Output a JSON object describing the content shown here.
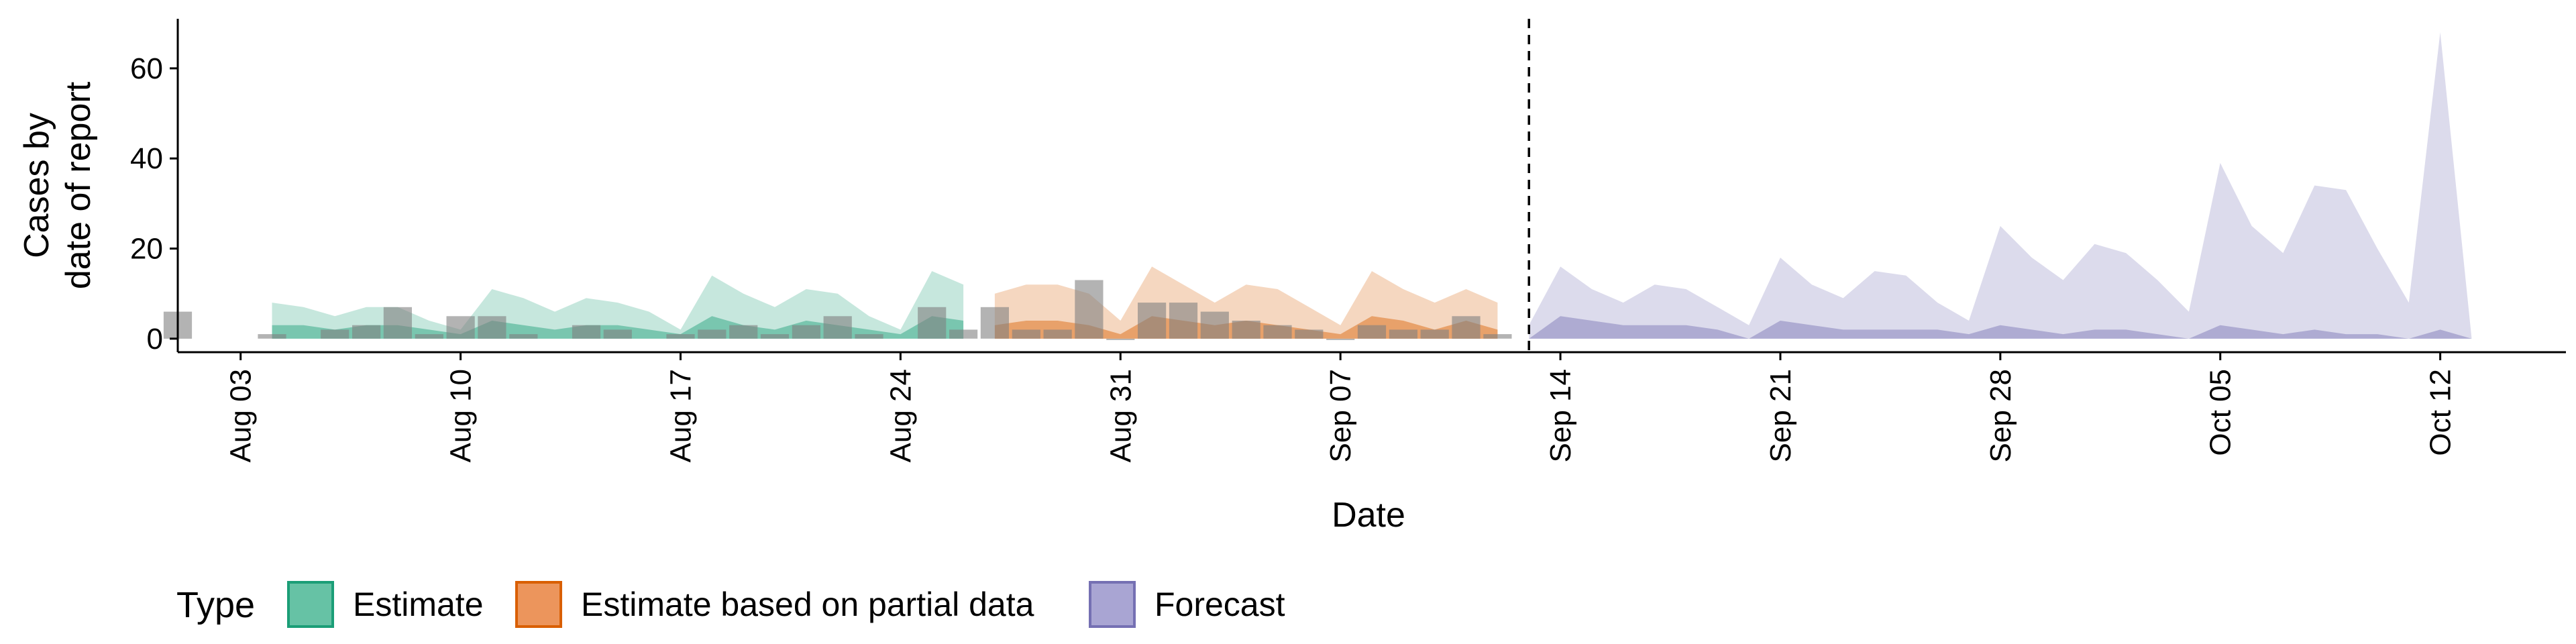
{
  "chart_data": {
    "type": "area",
    "xlabel": "Date",
    "ylabel_lines": [
      "Cases by",
      "date of report"
    ],
    "x_start_date": "2020-08-01",
    "xlim": [
      "2020-08-01",
      "2020-10-16"
    ],
    "ylim": [
      -3,
      71
    ],
    "yticks": [
      0,
      20,
      40,
      60
    ],
    "ytick_labels": [
      "0",
      "20",
      "40",
      "60"
    ],
    "xticks": [
      "2020-08-03",
      "2020-08-10",
      "2020-08-17",
      "2020-08-24",
      "2020-08-31",
      "2020-09-07",
      "2020-09-14",
      "2020-09-21",
      "2020-09-28",
      "2020-10-05",
      "2020-10-12"
    ],
    "xtick_labels": [
      "Aug 03",
      "Aug 10",
      "Aug 17",
      "Aug 24",
      "Aug 31",
      "Sep 07",
      "Sep 14",
      "Sep 21",
      "Sep 28",
      "Oct 05",
      "Oct 12"
    ],
    "forecast_date": "2020-09-13",
    "legend": {
      "title": "Type",
      "position": "bottom",
      "entries": [
        {
          "label": "Estimate",
          "fill": "#66c2a5",
          "stroke": "#1b9e77"
        },
        {
          "label": "Estimate based on partial data",
          "fill": "#ec955c",
          "stroke": "#d95f02"
        },
        {
          "label": "Forecast",
          "fill": "#a9a5d3",
          "stroke": "#7570b3"
        }
      ]
    },
    "series": [
      {
        "name": "Estimate",
        "color": "#1b9e77",
        "dates": [
          "2020-08-04",
          "2020-08-05",
          "2020-08-06",
          "2020-08-07",
          "2020-08-08",
          "2020-08-09",
          "2020-08-10",
          "2020-08-11",
          "2020-08-12",
          "2020-08-13",
          "2020-08-14",
          "2020-08-15",
          "2020-08-16",
          "2020-08-17",
          "2020-08-18",
          "2020-08-19",
          "2020-08-20",
          "2020-08-21",
          "2020-08-22",
          "2020-08-23",
          "2020-08-24",
          "2020-08-25",
          "2020-08-26"
        ],
        "outer_upper": [
          8,
          7,
          5,
          7,
          7,
          4,
          2,
          11,
          9,
          6,
          9,
          8,
          6,
          2,
          14,
          10,
          7,
          11,
          10,
          5,
          2,
          15,
          12
        ],
        "inner_upper": [
          3,
          3,
          2,
          3,
          3,
          2,
          1,
          4,
          3,
          2,
          3,
          3,
          2,
          1,
          5,
          3,
          2,
          4,
          3,
          2,
          1,
          5,
          4
        ]
      },
      {
        "name": "Estimate based on partial data",
        "color": "#d95f02",
        "dates": [
          "2020-08-27",
          "2020-08-28",
          "2020-08-29",
          "2020-08-30",
          "2020-08-31",
          "2020-09-01",
          "2020-09-02",
          "2020-09-03",
          "2020-09-04",
          "2020-09-05",
          "2020-09-06",
          "2020-09-07",
          "2020-09-08",
          "2020-09-09",
          "2020-09-10",
          "2020-09-11",
          "2020-09-12"
        ],
        "outer_upper": [
          10,
          12,
          12,
          10,
          4,
          16,
          12,
          8,
          12,
          11,
          7,
          3,
          15,
          11,
          8,
          11,
          8
        ],
        "inner_upper": [
          3,
          4,
          4,
          3,
          1,
          5,
          4,
          3,
          4,
          3,
          2,
          1,
          5,
          4,
          2,
          4,
          2
        ]
      },
      {
        "name": "Forecast",
        "color": "#7570b3",
        "dates": [
          "2020-09-13",
          "2020-09-14",
          "2020-09-15",
          "2020-09-16",
          "2020-09-17",
          "2020-09-18",
          "2020-09-19",
          "2020-09-20",
          "2020-09-21",
          "2020-09-22",
          "2020-09-23",
          "2020-09-24",
          "2020-09-25",
          "2020-09-26",
          "2020-09-27",
          "2020-09-28",
          "2020-09-29",
          "2020-09-30",
          "2020-10-01",
          "2020-10-02",
          "2020-10-03",
          "2020-10-04",
          "2020-10-05",
          "2020-10-06",
          "2020-10-07",
          "2020-10-08",
          "2020-10-09",
          "2020-10-10",
          "2020-10-11",
          "2020-10-12",
          "2020-10-13"
        ],
        "outer_upper": [
          3,
          16,
          11,
          8,
          12,
          11,
          7,
          3,
          18,
          12,
          9,
          15,
          14,
          8,
          4,
          25,
          18,
          13,
          21,
          19,
          13,
          6,
          39,
          25,
          19,
          34,
          33,
          20,
          8,
          68,
          0
        ],
        "inner_upper": [
          0,
          5,
          4,
          3,
          3,
          3,
          2,
          0,
          4,
          3,
          2,
          2,
          2,
          2,
          1,
          3,
          2,
          1,
          2,
          2,
          1,
          0,
          3,
          2,
          1,
          2,
          1,
          1,
          0,
          2,
          0
        ]
      }
    ],
    "reported_cases": {
      "color": "#808080",
      "dates": [
        "2020-08-01",
        "2020-08-04",
        "2020-08-06",
        "2020-08-07",
        "2020-08-08",
        "2020-08-09",
        "2020-08-10",
        "2020-08-11",
        "2020-08-12",
        "2020-08-14",
        "2020-08-15",
        "2020-08-17",
        "2020-08-18",
        "2020-08-19",
        "2020-08-20",
        "2020-08-21",
        "2020-08-22",
        "2020-08-23",
        "2020-08-25",
        "2020-08-26",
        "2020-08-27",
        "2020-08-28",
        "2020-08-29",
        "2020-08-30",
        "2020-08-31",
        "2020-09-01",
        "2020-09-02",
        "2020-09-03",
        "2020-09-04",
        "2020-09-05",
        "2020-09-06",
        "2020-09-07",
        "2020-09-08",
        "2020-09-09",
        "2020-09-10",
        "2020-09-11",
        "2020-09-12"
      ],
      "values": [
        6,
        1,
        2,
        3,
        7,
        1,
        5,
        5,
        1,
        3,
        2,
        1,
        2,
        3,
        1,
        3,
        5,
        1,
        7,
        2,
        7,
        2,
        2,
        13,
        0,
        8,
        8,
        6,
        4,
        3,
        2,
        0,
        3,
        2,
        2,
        5,
        1
      ]
    }
  }
}
